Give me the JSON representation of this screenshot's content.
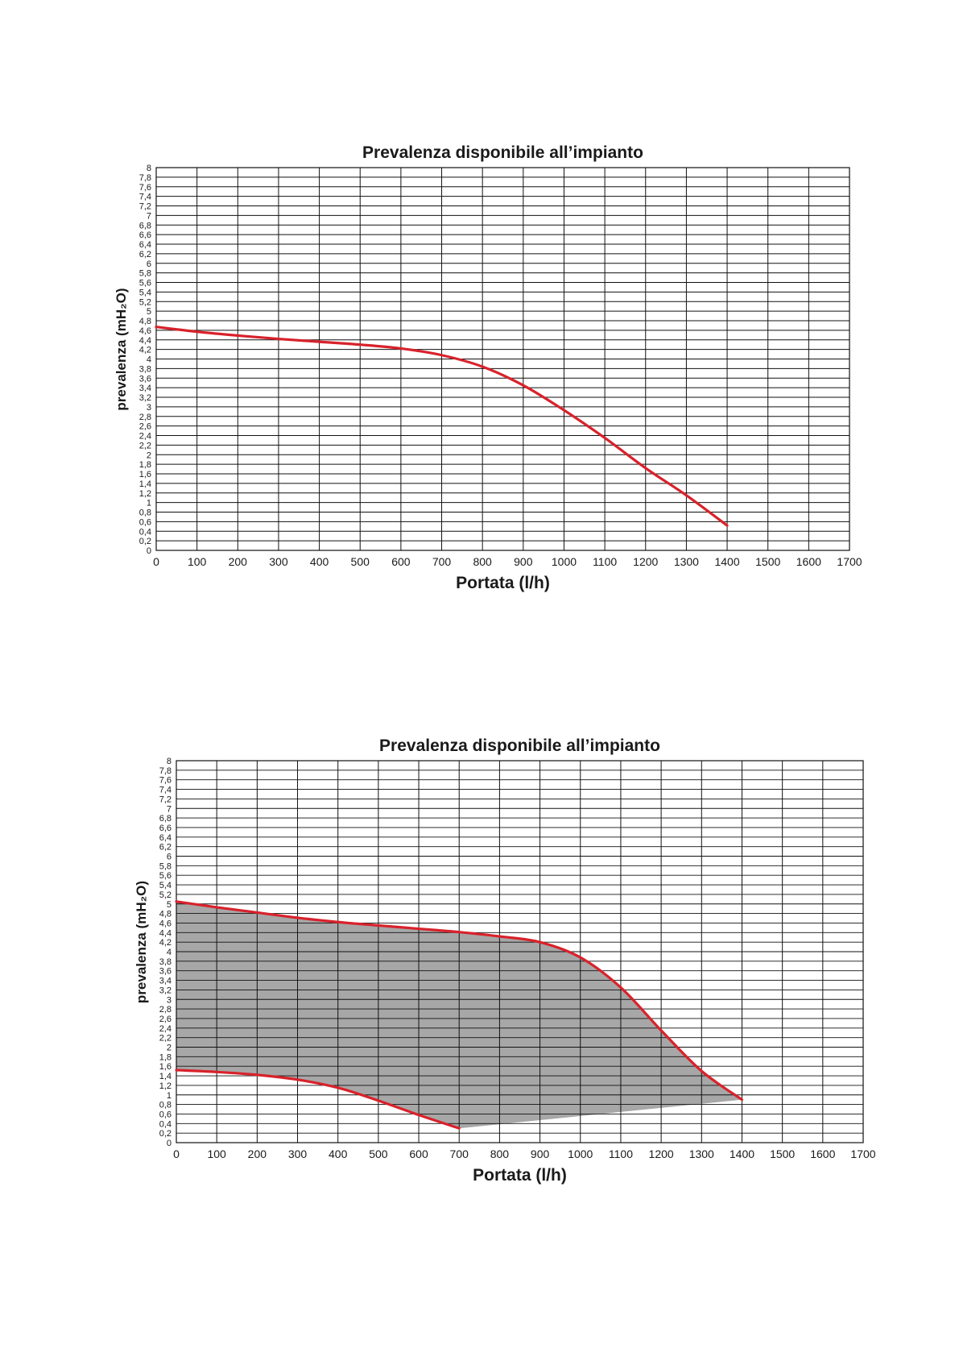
{
  "chart_data": [
    {
      "type": "line",
      "title": "Prevalenza disponibile all’impianto",
      "xlabel": "Portata (l/h)",
      "ylabel": "prevalenza (mH₂O)",
      "xlim": [
        0,
        1700
      ],
      "ylim": [
        0,
        8
      ],
      "x_ticks": [
        "0",
        "100",
        "200",
        "300",
        "400",
        "500",
        "600",
        "700",
        "800",
        "900",
        "1000",
        "1100",
        "1200",
        "1300",
        "1400",
        "1500",
        "1600",
        "1700"
      ],
      "y_ticks": [
        "0",
        "0,2",
        "0,4",
        "0,6",
        "0,8",
        "1",
        "1,2",
        "1,4",
        "1,6",
        "1,8",
        "2",
        "2,2",
        "2,4",
        "2,6",
        "2,8",
        "3",
        "3,2",
        "3,4",
        "3,6",
        "3,8",
        "4",
        "4,2",
        "4,4",
        "4,6",
        "4,8",
        "5",
        "5,2",
        "5,4",
        "5,6",
        "5,8",
        "6",
        "6,2",
        "6,4",
        "6,6",
        "6,8",
        "7",
        "7,2",
        "7,4",
        "7,6",
        "7,8",
        "8"
      ],
      "grid": true,
      "line_color": "#d8222b",
      "series": [
        {
          "values": [
            [
              0,
              4.67
            ],
            [
              100,
              4.57
            ],
            [
              200,
              4.49
            ],
            [
              300,
              4.42
            ],
            [
              400,
              4.36
            ],
            [
              500,
              4.3
            ],
            [
              600,
              4.22
            ],
            [
              700,
              4.08
            ],
            [
              800,
              3.84
            ],
            [
              900,
              3.45
            ],
            [
              1000,
              2.93
            ],
            [
              1100,
              2.35
            ],
            [
              1200,
              1.72
            ],
            [
              1300,
              1.15
            ],
            [
              1400,
              0.52
            ]
          ]
        }
      ]
    },
    {
      "type": "area",
      "title": "Prevalenza disponibile all’impianto",
      "xlabel": "Portata (l/h)",
      "ylabel": "prevalenza (mH₂O)",
      "xlim": [
        0,
        1700
      ],
      "ylim": [
        0,
        8
      ],
      "x_ticks": [
        "0",
        "100",
        "200",
        "300",
        "400",
        "500",
        "600",
        "700",
        "800",
        "900",
        "1000",
        "1100",
        "1200",
        "1300",
        "1400",
        "1500",
        "1600",
        "1700"
      ],
      "y_ticks": [
        "0",
        "0,2",
        "0,4",
        "0,6",
        "0,8",
        "1",
        "1,2",
        "1,4",
        "1,6",
        "1,8",
        "2",
        "2,2",
        "2,4",
        "2,6",
        "2,8",
        "3",
        "3,2",
        "3,4",
        "3,6",
        "3,8",
        "4",
        "4,2",
        "4,4",
        "4,6",
        "4,8",
        "5",
        "5,2",
        "5,4",
        "5,6",
        "5,8",
        "6",
        "6,2",
        "6,4",
        "6,6",
        "6,8",
        "7",
        "7,2",
        "7,4",
        "7,6",
        "7,8",
        "8"
      ],
      "grid": true,
      "line_color": "#d8222b",
      "fill_color": "#a7a7a7",
      "series": [
        {
          "values": [
            [
              0,
              5.05
            ],
            [
              100,
              4.93
            ],
            [
              200,
              4.82
            ],
            [
              300,
              4.71
            ],
            [
              400,
              4.62
            ],
            [
              500,
              4.55
            ],
            [
              600,
              4.48
            ],
            [
              700,
              4.41
            ],
            [
              800,
              4.32
            ],
            [
              900,
              4.2
            ],
            [
              1000,
              3.88
            ],
            [
              1100,
              3.25
            ],
            [
              1200,
              2.35
            ],
            [
              1300,
              1.5
            ],
            [
              1400,
              0.9
            ]
          ]
        },
        {
          "values": [
            [
              0,
              1.52
            ],
            [
              100,
              1.48
            ],
            [
              200,
              1.42
            ],
            [
              300,
              1.32
            ],
            [
              400,
              1.15
            ],
            [
              500,
              0.88
            ],
            [
              600,
              0.58
            ],
            [
              700,
              0.3
            ]
          ]
        },
        {
          "values": [
            [
              700,
              0.3
            ],
            [
              1400,
              0.9
            ]
          ]
        }
      ]
    }
  ]
}
